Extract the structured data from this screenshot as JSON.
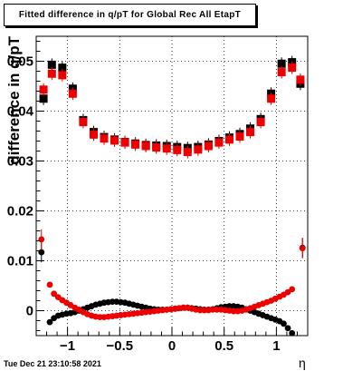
{
  "title": "Fitted difference in q/pT for Global Rec All EtapT",
  "timestamp": "Tue Dec 21 23:10:58 2021",
  "chart_data": {
    "type": "scatter",
    "xlabel": "η",
    "ylabel": "difference in q/pT",
    "xlim": [
      -1.3,
      1.3
    ],
    "ylim": [
      -0.005,
      0.055
    ],
    "xticks": [
      -1,
      -0.5,
      0,
      0.5,
      1
    ],
    "xtick_labels": [
      "−1",
      "−0.5",
      "0",
      "0.5",
      "1"
    ],
    "yticks": [
      0,
      0.01,
      0.02,
      0.03,
      0.04,
      0.05
    ],
    "ytick_labels": [
      "0",
      "0.01",
      "0.02",
      "0.03",
      "0.04",
      "0.05"
    ],
    "grid": true,
    "series": [
      {
        "color": "#000000",
        "marker": "square",
        "x": [
          -1.23,
          -1.15,
          -1.05,
          -0.95,
          -0.85,
          -0.75,
          -0.65,
          -0.55,
          -0.45,
          -0.35,
          -0.25,
          -0.15,
          -0.05,
          0.05,
          0.15,
          0.25,
          0.35,
          0.45,
          0.55,
          0.65,
          0.75,
          0.85,
          0.95,
          1.05,
          1.15,
          1.23
        ],
        "y": [
          0.0425,
          0.0493,
          0.0487,
          0.0445,
          0.0382,
          0.0358,
          0.0348,
          0.0343,
          0.0338,
          0.0335,
          0.0332,
          0.0331,
          0.033,
          0.0328,
          0.0326,
          0.0328,
          0.0333,
          0.034,
          0.0347,
          0.0354,
          0.0365,
          0.0384,
          0.0435,
          0.0495,
          0.0498,
          0.0455
        ]
      },
      {
        "color": "#ee0000",
        "marker": "square",
        "x": [
          -1.23,
          -1.15,
          -1.05,
          -0.95,
          -0.85,
          -0.75,
          -0.65,
          -0.55,
          -0.45,
          -0.35,
          -0.25,
          -0.15,
          -0.05,
          0.05,
          0.15,
          0.25,
          0.35,
          0.45,
          0.55,
          0.65,
          0.75,
          0.85,
          0.95,
          1.05,
          1.15,
          1.23
        ],
        "y": [
          0.0443,
          0.0475,
          0.0472,
          0.0435,
          0.0378,
          0.0353,
          0.0345,
          0.0341,
          0.0337,
          0.0333,
          0.033,
          0.0327,
          0.0325,
          0.0322,
          0.0318,
          0.0323,
          0.033,
          0.0337,
          0.0343,
          0.0349,
          0.0358,
          0.0378,
          0.0425,
          0.0478,
          0.0487,
          0.0463
        ]
      },
      {
        "color": "#000000",
        "marker": "circle",
        "x": [
          -1.25,
          -1.17,
          -1.13,
          -1.09,
          -1.05,
          -1.01,
          -0.97,
          -0.93,
          -0.89,
          -0.85,
          -0.81,
          -0.77,
          -0.73,
          -0.69,
          -0.65,
          -0.61,
          -0.57,
          -0.53,
          -0.49,
          -0.45,
          -0.41,
          -0.37,
          -0.33,
          -0.29,
          -0.25,
          -0.21,
          -0.17,
          -0.13,
          -0.09,
          -0.05,
          -0.01,
          0.03,
          0.07,
          0.11,
          0.15,
          0.19,
          0.23,
          0.27,
          0.31,
          0.35,
          0.39,
          0.43,
          0.47,
          0.51,
          0.55,
          0.59,
          0.63,
          0.67,
          0.71,
          0.75,
          0.79,
          0.83,
          0.87,
          0.91,
          0.95,
          0.99,
          1.03,
          1.07,
          1.11,
          1.15,
          1.25
        ],
        "y": [
          0.0117,
          -0.0023,
          -0.0015,
          -0.001,
          -0.0008,
          -0.0006,
          -0.0005,
          -0.0003,
          0.0,
          0.0003,
          0.0006,
          0.0009,
          0.0012,
          0.0014,
          0.0016,
          0.0017,
          0.0018,
          0.0018,
          0.0017,
          0.0016,
          0.0014,
          0.0012,
          0.001,
          0.0008,
          0.0006,
          0.0004,
          0.0003,
          0.0002,
          0.0002,
          0.0002,
          0.0003,
          0.0004,
          0.0005,
          0.0006,
          0.0006,
          0.0005,
          0.0004,
          0.0003,
          0.0002,
          0.0002,
          0.0003,
          0.0005,
          0.0007,
          0.0008,
          0.0009,
          0.0009,
          0.0008,
          0.0006,
          0.0003,
          0.0,
          -0.0003,
          -0.0006,
          -0.0009,
          -0.0012,
          -0.0015,
          -0.0018,
          -0.0021,
          -0.0026,
          -0.0035,
          -0.0045,
          0.0126
        ]
      },
      {
        "color": "#ee0000",
        "marker": "circle",
        "x": [
          -1.25,
          -1.17,
          -1.13,
          -1.09,
          -1.05,
          -1.01,
          -0.97,
          -0.93,
          -0.89,
          -0.85,
          -0.81,
          -0.77,
          -0.73,
          -0.69,
          -0.65,
          -0.61,
          -0.57,
          -0.53,
          -0.49,
          -0.45,
          -0.41,
          -0.37,
          -0.33,
          -0.29,
          -0.25,
          -0.21,
          -0.17,
          -0.13,
          -0.09,
          -0.05,
          -0.01,
          0.03,
          0.07,
          0.11,
          0.15,
          0.19,
          0.23,
          0.27,
          0.31,
          0.35,
          0.39,
          0.43,
          0.47,
          0.51,
          0.55,
          0.59,
          0.63,
          0.67,
          0.71,
          0.75,
          0.79,
          0.83,
          0.87,
          0.91,
          0.95,
          0.99,
          1.03,
          1.07,
          1.11,
          1.15,
          1.25
        ],
        "y": [
          0.0143,
          0.0052,
          0.0034,
          0.0027,
          0.0021,
          0.0016,
          0.0011,
          0.0006,
          0.0002,
          -0.0003,
          -0.0007,
          -0.001,
          -0.0012,
          -0.0013,
          -0.0013,
          -0.0012,
          -0.0011,
          -0.001,
          -0.0009,
          -0.0008,
          -0.0007,
          -0.0006,
          -0.0005,
          -0.0004,
          -0.0003,
          -0.0002,
          -0.0001,
          0.0,
          0.0001,
          0.0002,
          0.0003,
          0.0004,
          0.0005,
          0.0006,
          0.0006,
          0.0004,
          0.0002,
          0.0001,
          0.0001,
          0.0001,
          0.0002,
          0.0002,
          0.0002,
          0.0001,
          0.0,
          -0.0001,
          -0.0001,
          0.0,
          0.0002,
          0.0005,
          0.0008,
          0.0011,
          0.0014,
          0.0017,
          0.002,
          0.0024,
          0.0028,
          0.0032,
          0.0037,
          0.0043,
          0.0125
        ]
      }
    ]
  }
}
